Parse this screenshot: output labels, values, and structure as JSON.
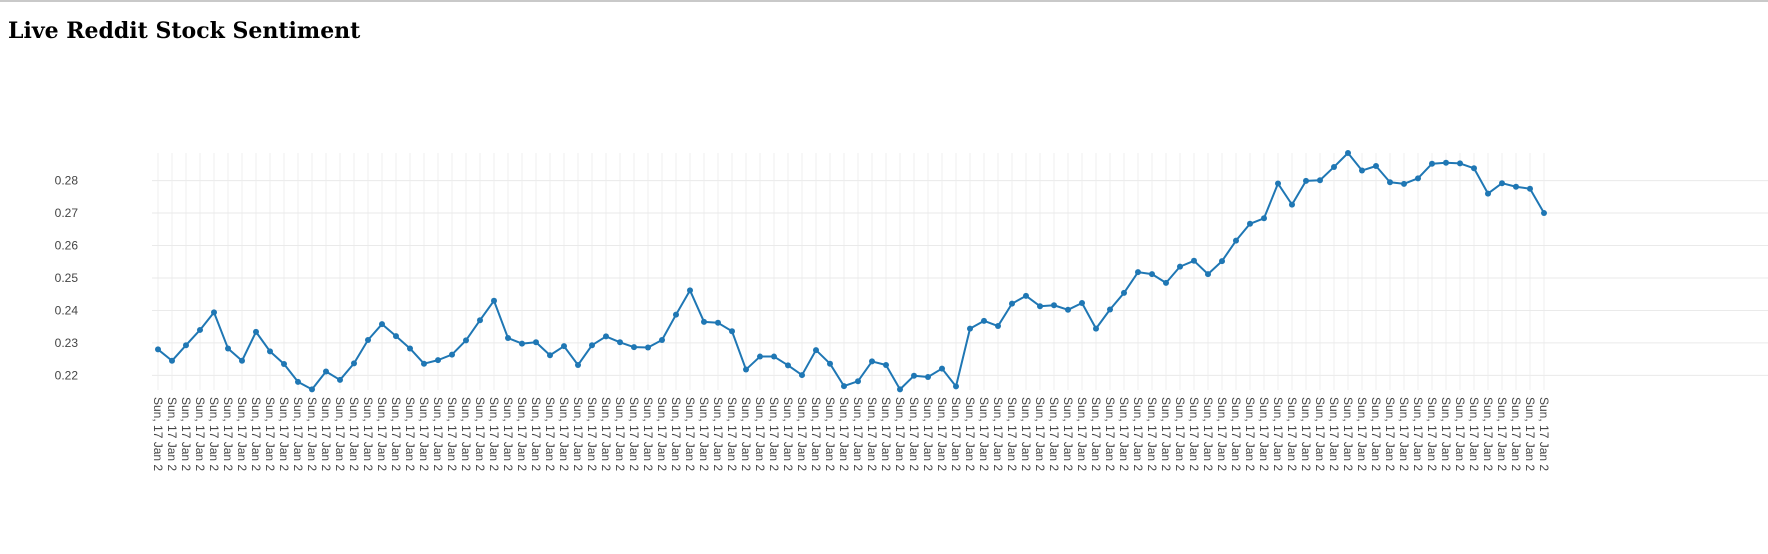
{
  "page": {
    "title": "Live Reddit Stock Sentiment"
  },
  "chart_data": {
    "type": "line",
    "title": "",
    "xlabel": "",
    "ylabel": "",
    "x_tick_label": "Sun, 17 Jan 2",
    "ylim": [
      0.2155,
      0.2885
    ],
    "yticks": [
      0.22,
      0.23,
      0.24,
      0.25,
      0.26,
      0.27,
      0.28
    ],
    "grid": true,
    "legend": "none",
    "color": "#1f77b4",
    "series": [
      {
        "values": [
          0.228,
          0.2245,
          0.2293,
          0.234,
          0.2394,
          0.2283,
          0.2245,
          0.2334,
          0.2274,
          0.2235,
          0.218,
          0.2157,
          0.2212,
          0.2186,
          0.2237,
          0.2309,
          0.2358,
          0.2321,
          0.2283,
          0.2236,
          0.2247,
          0.2264,
          0.2308,
          0.237,
          0.243,
          0.2315,
          0.2298,
          0.2302,
          0.2262,
          0.229,
          0.2232,
          0.2293,
          0.232,
          0.2302,
          0.2287,
          0.2286,
          0.2309,
          0.2387,
          0.2462,
          0.2365,
          0.2362,
          0.2336,
          0.2218,
          0.2258,
          0.2258,
          0.2231,
          0.2201,
          0.2278,
          0.2236,
          0.2167,
          0.2182,
          0.2243,
          0.2232,
          0.2157,
          0.2199,
          0.2195,
          0.2221,
          0.2166,
          0.2344,
          0.2368,
          0.2352,
          0.2421,
          0.2445,
          0.2413,
          0.2416,
          0.2402,
          0.2423,
          0.2344,
          0.2403,
          0.2454,
          0.2518,
          0.2512,
          0.2485,
          0.2535,
          0.2553,
          0.2512,
          0.2552,
          0.2615,
          0.2667,
          0.2684,
          0.2791,
          0.2726,
          0.2799,
          0.2801,
          0.2842,
          0.2885,
          0.2831,
          0.2845,
          0.2795,
          0.279,
          0.2807,
          0.2852,
          0.2855,
          0.2853,
          0.2838,
          0.276,
          0.2792,
          0.2781,
          0.2775,
          0.27
        ]
      }
    ]
  }
}
